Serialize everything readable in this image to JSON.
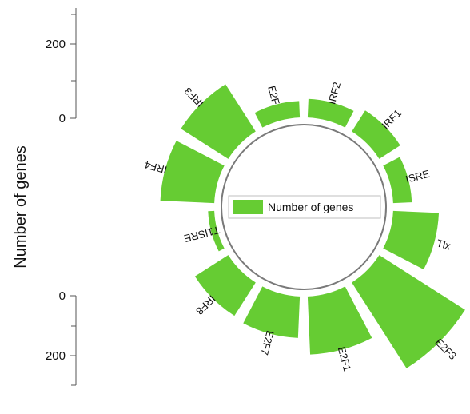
{
  "chart_data": {
    "type": "bar",
    "layout": "polar",
    "categories": [
      "E2F",
      "IRF2",
      "IRF1",
      "ISRE",
      "Tlx",
      "E2F3",
      "E2F1",
      "E2F7",
      "IRF8",
      "T1ISRE",
      "IRF4",
      "IRF3"
    ],
    "series": [
      {
        "name": "Number of genes",
        "values": [
          40,
          45,
          60,
          45,
          110,
          245,
          140,
          100,
          95,
          15,
          130,
          135
        ]
      }
    ],
    "ylabel": "Number of genes",
    "yticks_upper": [
      200,
      0
    ],
    "yticks_lower": [
      0,
      200
    ],
    "rlim": [
      0,
      280
    ],
    "legend": "center",
    "bar_color": "#66cc33"
  }
}
